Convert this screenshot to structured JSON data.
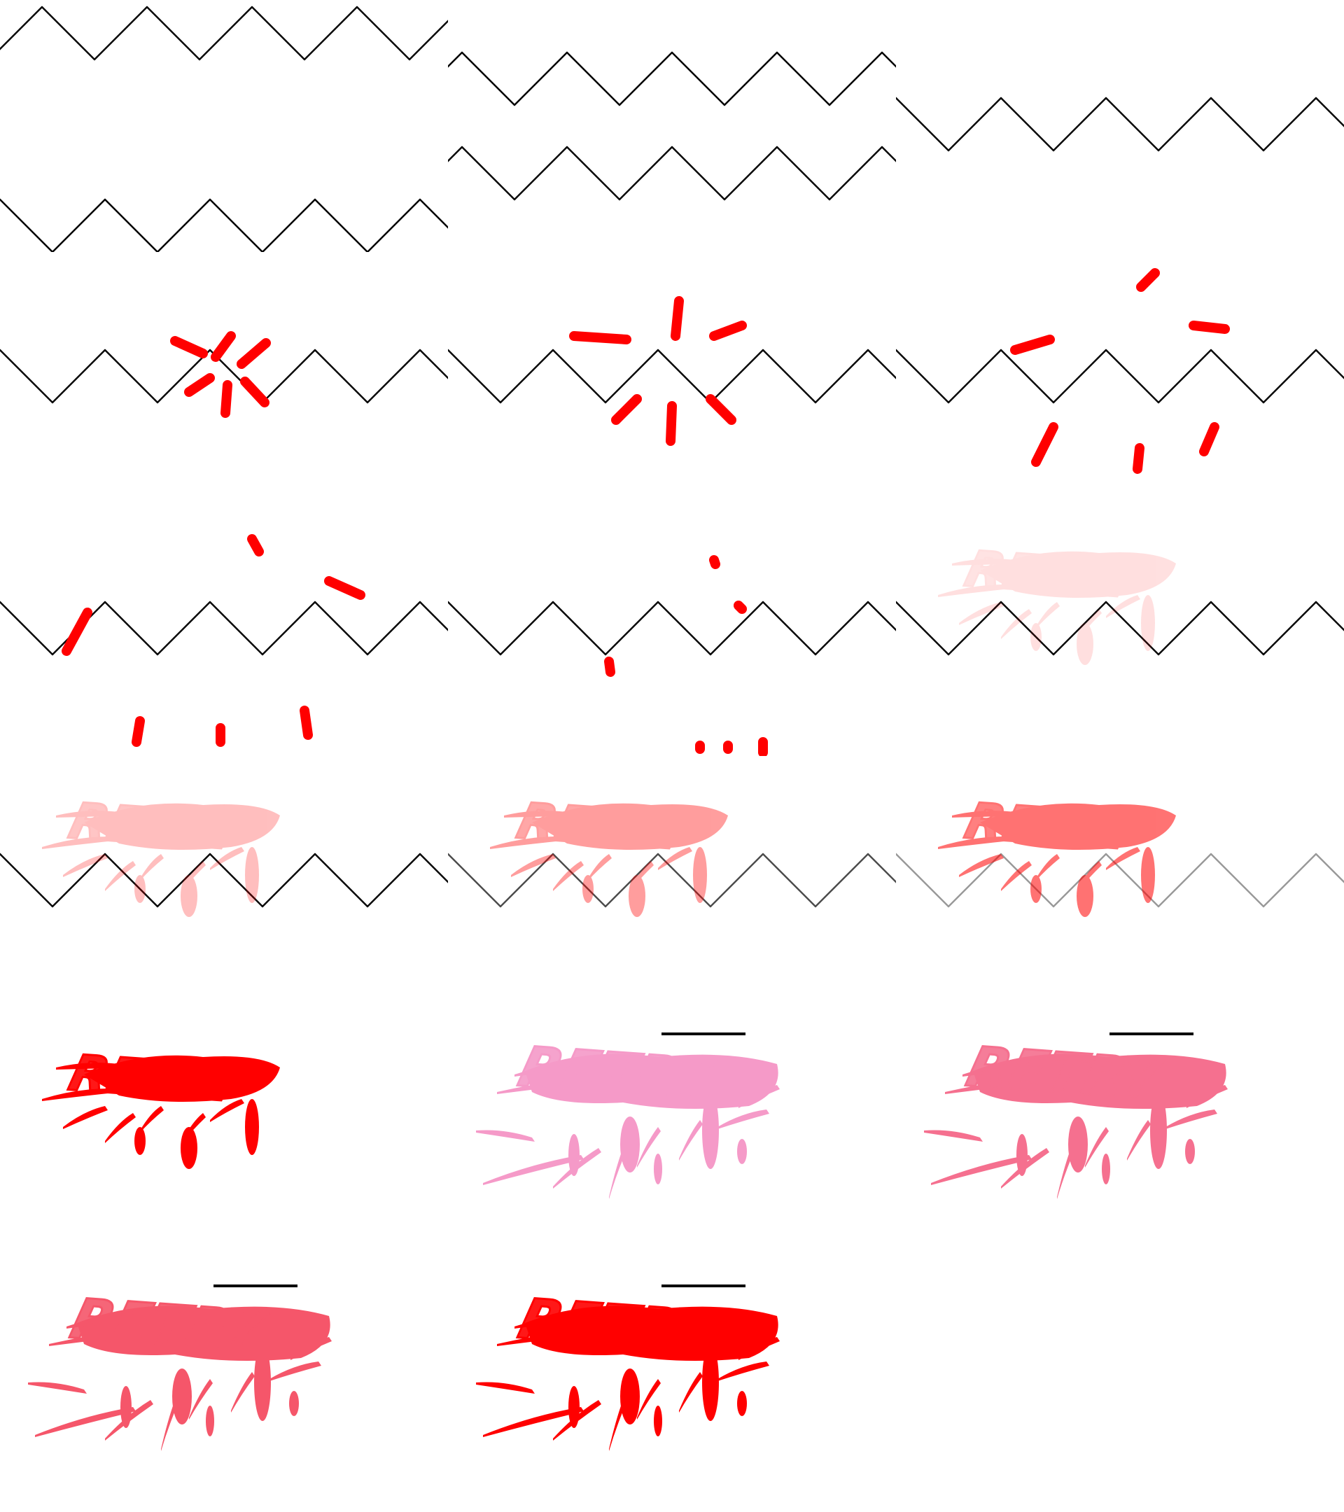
{
  "sprite_sheet": {
    "title": "",
    "frame_count": 17,
    "colors": {
      "background": "#ffffff",
      "wave_line": "#000000",
      "splash_red": "#ff0000",
      "splash_pink": "#f59ac8",
      "splash_rose": "#f5708f",
      "splash_coral": "#f5566a",
      "logo_bar": "#000000"
    },
    "frames": [
      {
        "id": 1,
        "kind": "wave",
        "waves": 2,
        "wave_opacity": 1,
        "sparks": "none",
        "logo": null
      },
      {
        "id": 2,
        "kind": "wave",
        "waves": 2,
        "wave_opacity": 1,
        "sparks": "none",
        "logo": null
      },
      {
        "id": 3,
        "kind": "wave",
        "waves": 1,
        "wave_opacity": 1,
        "sparks": "none",
        "logo": null
      },
      {
        "id": 4,
        "kind": "wave",
        "waves": 1,
        "wave_opacity": 1,
        "sparks": "burst-1",
        "logo": null
      },
      {
        "id": 5,
        "kind": "wave",
        "waves": 1,
        "wave_opacity": 1,
        "sparks": "burst-2",
        "logo": null
      },
      {
        "id": 6,
        "kind": "wave",
        "waves": 1,
        "wave_opacity": 1,
        "sparks": "burst-3",
        "logo": null
      },
      {
        "id": 7,
        "kind": "wave",
        "waves": 1,
        "wave_opacity": 1,
        "sparks": "burst-4",
        "logo": null
      },
      {
        "id": 8,
        "kind": "wave",
        "waves": 1,
        "wave_opacity": 1,
        "sparks": "burst-5",
        "logo": null
      },
      {
        "id": 9,
        "kind": "wave",
        "waves": 1,
        "wave_opacity": 1,
        "sparks": "none",
        "logo": {
          "text": "RETRY",
          "color": "#ff0000",
          "opacity": 0.12,
          "bar": false
        }
      },
      {
        "id": 10,
        "kind": "wave",
        "waves": 1,
        "wave_opacity": 1,
        "sparks": "none",
        "logo": {
          "text": "RETRY",
          "color": "#ff0000",
          "opacity": 0.25,
          "bar": false
        }
      },
      {
        "id": 11,
        "kind": "wave",
        "waves": 1,
        "wave_opacity": 0.7,
        "sparks": "none",
        "logo": {
          "text": "RETRY",
          "color": "#ff0000",
          "opacity": 0.38,
          "bar": false
        }
      },
      {
        "id": 12,
        "kind": "wave",
        "waves": 1,
        "wave_opacity": 0.4,
        "sparks": "none",
        "logo": {
          "text": "RETRY",
          "color": "#ff0000",
          "opacity": 0.55,
          "bar": false
        }
      },
      {
        "id": 13,
        "kind": "logo",
        "waves": 0,
        "wave_opacity": 0,
        "sparks": "none",
        "logo": {
          "text": "RETRY",
          "color": "#ff0000",
          "opacity": 1,
          "bar": false,
          "spread": "small"
        }
      },
      {
        "id": 14,
        "kind": "logo",
        "waves": 0,
        "wave_opacity": 0,
        "sparks": "none",
        "logo": {
          "text": "RETRY",
          "color": "#f59ac8",
          "opacity": 1,
          "bar": true,
          "spread": "large"
        }
      },
      {
        "id": 15,
        "kind": "logo",
        "waves": 0,
        "wave_opacity": 0,
        "sparks": "none",
        "logo": {
          "text": "RETRY",
          "color": "#f5708f",
          "opacity": 1,
          "bar": true,
          "spread": "large"
        }
      },
      {
        "id": 16,
        "kind": "logo",
        "waves": 0,
        "wave_opacity": 0,
        "sparks": "none",
        "logo": {
          "text": "RETRY",
          "color": "#f5566a",
          "opacity": 1,
          "bar": true,
          "spread": "large"
        }
      },
      {
        "id": 17,
        "kind": "logo",
        "waves": 0,
        "wave_opacity": 0,
        "sparks": "none",
        "logo": {
          "text": "RETRY",
          "color": "#ff0000",
          "opacity": 1,
          "bar": true,
          "spread": "large"
        }
      }
    ]
  }
}
